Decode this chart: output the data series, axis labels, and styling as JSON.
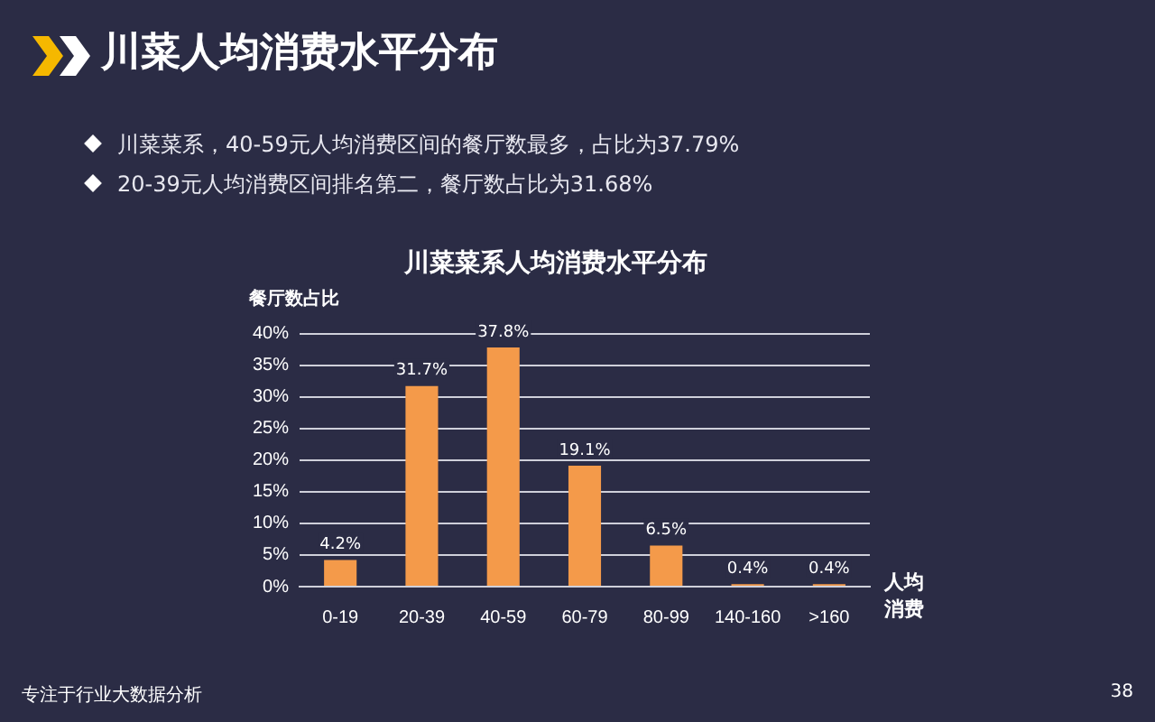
{
  "chart_data": {
    "type": "bar",
    "title": "川菜人均消费水平分布",
    "subtitle": "川菜菜系人均消费水平分布",
    "ylabel": "餐厅数占比",
    "xlabel": "人均消费",
    "categories": [
      "0-19",
      "20-39",
      "40-59",
      "60-79",
      "80-99",
      "140-160",
      ">160"
    ],
    "values": [
      4.2,
      31.7,
      37.8,
      19.1,
      6.5,
      0.4,
      0.4
    ],
    "value_labels": [
      "4.2%",
      "31.7%",
      "37.8%",
      "19.1%",
      "6.5%",
      "0.4%",
      "0.4%"
    ],
    "color": "#f49a4a",
    "ylim": [
      0,
      40
    ],
    "yticks": [
      {
        "value": 0,
        "label": "0%"
      },
      {
        "value": 5,
        "label": "5%"
      },
      {
        "value": 10,
        "label": "10%"
      },
      {
        "value": 15,
        "label": "15%"
      },
      {
        "value": 20,
        "label": "20%"
      },
      {
        "value": 25,
        "label": "25%"
      },
      {
        "value": 30,
        "label": "30%"
      },
      {
        "value": 35,
        "label": "35%"
      },
      {
        "value": 40,
        "label": "40%"
      }
    ],
    "grid": "y",
    "annotations": [
      "川菜菜系，40-59元人均消费区间的餐厅数最多，占比为37.79%",
      "20-39元人均消费区间排名第二，餐厅数占比为31.68%",
      "专注于行业大数据分析",
      "38"
    ]
  }
}
